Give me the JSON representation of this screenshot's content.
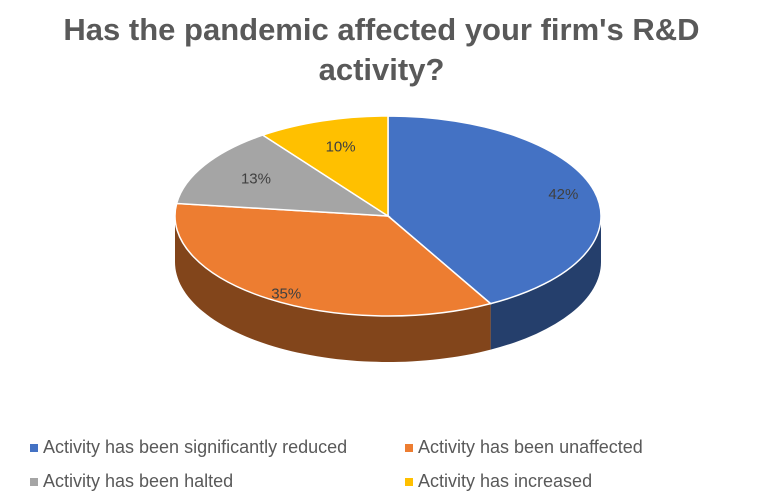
{
  "chart_data": {
    "type": "pie",
    "title": "Has the pandemic affected your firm's R&D activity?",
    "categories": [
      "Activity has been significantly reduced",
      "Activity has been unaffected",
      "Activity has been halted",
      "Activity has increased"
    ],
    "values": [
      42,
      35,
      13,
      10
    ],
    "value_labels": [
      "42%",
      "35%",
      "13%",
      "10%"
    ],
    "colors": [
      "#4472c4",
      "#ed7d31",
      "#a5a5a5",
      "#ffc000"
    ],
    "legend": "bottom"
  }
}
